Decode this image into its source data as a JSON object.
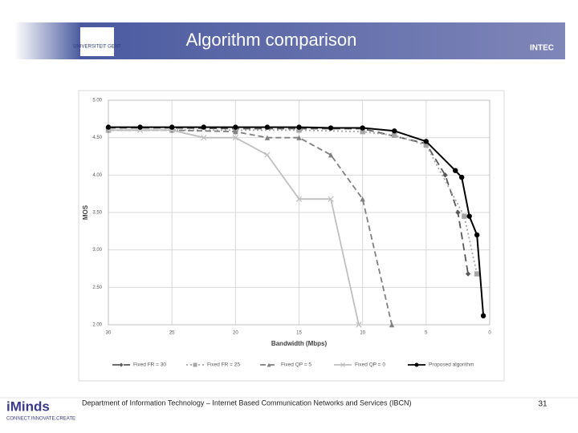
{
  "slide": {
    "title": "Algorithm comparison",
    "logo_left": "UNIVERSITEIT GENT",
    "logo_right": "INTEC",
    "logo_bottom": "iMinds",
    "logo_bottom_sub": "CONNECT.INNOVATE.CREATE",
    "footer": "Department of Information Technology – Internet Based Communication Networks and Services (IBCN)",
    "page_number": "31"
  },
  "chart_data": {
    "type": "line",
    "xlabel": "Bandwidth (Mbps)",
    "ylabel": "MOS",
    "xlim": [
      30,
      0
    ],
    "xticks": [
      30,
      25,
      20,
      15,
      10,
      5,
      0
    ],
    "ylim": [
      2,
      5
    ],
    "yticks": [
      {
        "value": 2,
        "label": "2.00"
      },
      {
        "value": 2.5,
        "label": "2.50"
      },
      {
        "value": 3,
        "label": "3.00"
      },
      {
        "value": 3.5,
        "label": "3.50"
      },
      {
        "value": 4,
        "label": "4.00"
      },
      {
        "value": 4.5,
        "label": "4.50"
      },
      {
        "value": 5,
        "label": "5.00"
      }
    ],
    "grid": true,
    "legend": "bottom",
    "series": [
      {
        "name": "Fixed FR = 30",
        "color": "#595959",
        "marker": "diamond",
        "dash": "9,5",
        "x": [
          30,
          25,
          20,
          15,
          10,
          5,
          3.5,
          2.5,
          1.7
        ],
        "values": [
          4.63,
          4.63,
          4.62,
          4.62,
          4.62,
          4.42,
          4.0,
          3.5,
          2.68
        ]
      },
      {
        "name": "Fixed FR = 25",
        "color": "#a6a6a6",
        "marker": "square",
        "dash": "2,3",
        "x": [
          30,
          25,
          20,
          15,
          10,
          7.5,
          5,
          2,
          1
        ],
        "values": [
          4.6,
          4.6,
          4.6,
          4.6,
          4.58,
          4.53,
          4.4,
          3.45,
          2.68
        ]
      },
      {
        "name": "Fixed QP = 5",
        "color": "#808080",
        "marker": "triangle",
        "dash": "7,4",
        "x": [
          30,
          25,
          20,
          17.5,
          15,
          12.5,
          10,
          7.7
        ],
        "values": [
          4.6,
          4.6,
          4.58,
          4.5,
          4.5,
          4.27,
          3.68,
          2.0
        ]
      },
      {
        "name": "Fixed QP = 0",
        "color": "#bfbfbf",
        "marker": "x",
        "dash": "",
        "x": [
          30,
          27.5,
          25,
          22.5,
          20,
          17.5,
          15,
          12.5,
          10.3
        ],
        "values": [
          4.6,
          4.6,
          4.6,
          4.5,
          4.5,
          4.27,
          3.68,
          3.68,
          2.0
        ]
      },
      {
        "name": "Proposed algorithm",
        "color": "#000000",
        "marker": "circle",
        "dash": "",
        "x": [
          30,
          27.5,
          25,
          22.5,
          20,
          17.5,
          15,
          12.5,
          10,
          7.5,
          5,
          2.7,
          2.2,
          1.6,
          1,
          0.5
        ],
        "values": [
          4.64,
          4.64,
          4.64,
          4.64,
          4.64,
          4.64,
          4.64,
          4.63,
          4.63,
          4.59,
          4.45,
          4.06,
          3.97,
          3.45,
          3.2,
          2.12
        ]
      }
    ]
  }
}
